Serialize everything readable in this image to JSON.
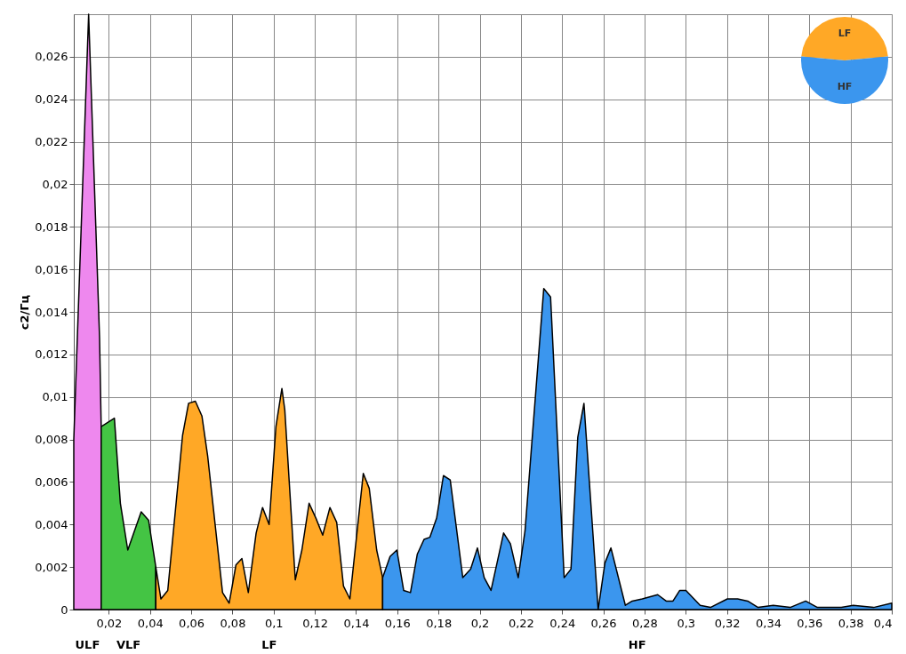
{
  "chart_data": [
    {
      "type": "area",
      "ylabel": "c2/Гц",
      "xlim": [
        0.003,
        0.4
      ],
      "ylim": [
        0,
        0.028
      ],
      "grid": true,
      "xticks": [
        {
          "value": 0.02,
          "label": "0,02"
        },
        {
          "value": 0.04,
          "label": "0,04"
        },
        {
          "value": 0.06,
          "label": "0,06"
        },
        {
          "value": 0.08,
          "label": "0,08"
        },
        {
          "value": 0.1,
          "label": "0,1"
        },
        {
          "value": 0.12,
          "label": "0,12"
        },
        {
          "value": 0.14,
          "label": "0,14"
        },
        {
          "value": 0.16,
          "label": "0,16"
        },
        {
          "value": 0.18,
          "label": "0,18"
        },
        {
          "value": 0.2,
          "label": "0,2"
        },
        {
          "value": 0.22,
          "label": "0,22"
        },
        {
          "value": 0.24,
          "label": "0,24"
        },
        {
          "value": 0.26,
          "label": "0,26"
        },
        {
          "value": 0.28,
          "label": "0,28"
        },
        {
          "value": 0.3,
          "label": "0,3"
        },
        {
          "value": 0.32,
          "label": "0,32"
        },
        {
          "value": 0.34,
          "label": "0,34"
        },
        {
          "value": 0.36,
          "label": "0,36"
        },
        {
          "value": 0.38,
          "label": "0,38"
        },
        {
          "value": 0.4,
          "label": "0,4"
        }
      ],
      "yticks": [
        0,
        {
          "value": 0.002,
          "label": "0,002"
        },
        {
          "value": 0.004,
          "label": "0,004"
        },
        {
          "value": 0.006,
          "label": "0,006"
        },
        {
          "value": 0.008,
          "label": "0,008"
        },
        {
          "value": 0.01,
          "label": "0,01"
        },
        {
          "value": 0.012,
          "label": "0,012"
        },
        {
          "value": 0.014,
          "label": "0,014"
        },
        {
          "value": 0.016,
          "label": "0,016"
        },
        {
          "value": 0.018,
          "label": "0,018"
        },
        {
          "value": 0.02,
          "label": "0,02"
        },
        {
          "value": 0.022,
          "label": "0,022"
        },
        {
          "value": 0.024,
          "label": "0,024"
        },
        {
          "value": 0.026,
          "label": "0,026"
        }
      ],
      "series": [
        {
          "name": "ULF",
          "color": "#ee88ee",
          "x": [
            0.003,
            0.0102,
            0.0155,
            0.0163
          ],
          "values": [
            0.008,
            0.028,
            0.0128,
            0.0086
          ]
        },
        {
          "name": "VLF",
          "color": "#44c444",
          "x": [
            0.0163,
            0.0227,
            0.0256,
            0.0292,
            0.0357,
            0.0393,
            0.0428
          ],
          "values": [
            0.0086,
            0.009,
            0.005,
            0.0028,
            0.0046,
            0.0042,
            0.002
          ]
        },
        {
          "name": "LF",
          "color": "#ffa826",
          "x": [
            0.0428,
            0.0453,
            0.0486,
            0.0558,
            0.0587,
            0.062,
            0.0652,
            0.068,
            0.0752,
            0.0784,
            0.0817,
            0.0846,
            0.0877,
            0.0915,
            0.0946,
            0.0978,
            0.1011,
            0.104,
            0.1054,
            0.1105,
            0.1137,
            0.1172,
            0.1205,
            0.1238,
            0.1273,
            0.1306,
            0.1339,
            0.137,
            0.1435,
            0.1464,
            0.15,
            0.1529
          ],
          "values": [
            0.002,
            0.0005,
            0.0009,
            0.0082,
            0.0097,
            0.0098,
            0.0091,
            0.0072,
            0.0008,
            0.0003,
            0.0021,
            0.0024,
            0.0008,
            0.0036,
            0.0048,
            0.004,
            0.0086,
            0.0104,
            0.0094,
            0.0014,
            0.0028,
            0.005,
            0.0043,
            0.0035,
            0.0048,
            0.0041,
            0.0011,
            0.0005,
            0.0064,
            0.0057,
            0.0028,
            0.0015
          ]
        },
        {
          "name": "HF",
          "color": "#3b96ee",
          "x": [
            0.1529,
            0.1565,
            0.1598,
            0.1631,
            0.1664,
            0.1697,
            0.173,
            0.1758,
            0.1791,
            0.1824,
            0.1857,
            0.1918,
            0.1956,
            0.1989,
            0.2022,
            0.2055,
            0.2116,
            0.2149,
            0.2187,
            0.222,
            0.2311,
            0.2344,
            0.241,
            0.2443,
            0.2476,
            0.2506,
            0.2575,
            0.2608,
            0.2637,
            0.2707,
            0.274,
            0.2789,
            0.2864,
            0.2905,
            0.2938,
            0.2971,
            0.3001,
            0.307,
            0.312,
            0.3202,
            0.3252,
            0.3301,
            0.3351,
            0.3425,
            0.3507,
            0.3582,
            0.3639,
            0.3755,
            0.3813,
            0.3912,
            0.4
          ],
          "values": [
            0.0015,
            0.0025,
            0.0028,
            0.0009,
            0.0008,
            0.0026,
            0.0033,
            0.0034,
            0.0043,
            0.0063,
            0.0061,
            0.0015,
            0.0019,
            0.0029,
            0.0015,
            0.0009,
            0.0036,
            0.0031,
            0.0015,
            0.0037,
            0.0151,
            0.0147,
            0.0015,
            0.0019,
            0.0081,
            0.0097,
            0,
            0.0022,
            0.0029,
            0.0002,
            0.0004,
            0.0005,
            0.0007,
            0.0004,
            0.0004,
            0.0009,
            0.0009,
            0.0002,
            0.0001,
            0.0005,
            0.0005,
            0.0004,
            0.0001,
            0.0002,
            0.0001,
            0.0004,
            0.0001,
            0.0001,
            0.0002,
            0.0001,
            0.0003
          ]
        }
      ]
    },
    {
      "type": "pie",
      "categories": [
        "LF",
        "HF"
      ],
      "values": [
        47,
        53
      ],
      "colors": [
        "#ffa826",
        "#3b96ee"
      ]
    }
  ]
}
